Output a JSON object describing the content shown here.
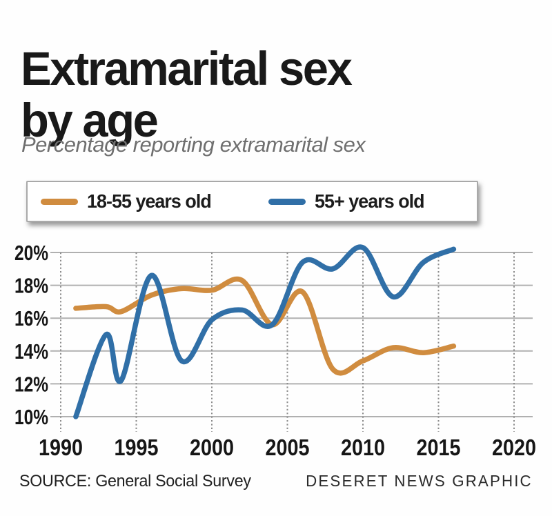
{
  "header": {
    "title_line1": "Extramarital sex",
    "title_line2": "by age",
    "subtitle": "Percentage reporting extramarital sex"
  },
  "footer": {
    "source": "SOURCE: General Social Survey",
    "credit": "DESERET NEWS GRAPHIC"
  },
  "colors": {
    "orange_series": "#d08c3f",
    "blue_series": "#306fa7",
    "grid_horizontal": "#b0b0b0",
    "grid_vertical_dotted": "#8c8c8c",
    "axis_text": "#161616",
    "title_text": "#191919",
    "subtitle_text": "#6f6f6f",
    "legend_border": "#a9a9a9"
  },
  "chart_data": {
    "type": "line",
    "title": "Extramarital sex by age",
    "subtitle": "Percentage reporting extramarital sex",
    "xlabel": "",
    "ylabel": "Percentage reporting extramarital sex",
    "xlim": [
      1990,
      2020
    ],
    "ylim": [
      10,
      20
    ],
    "x_ticks": [
      1990,
      1995,
      2000,
      2005,
      2010,
      2015,
      2020
    ],
    "y_ticks": [
      10,
      12,
      14,
      16,
      18,
      20
    ],
    "y_tick_suffix": "%",
    "grid": {
      "horizontal": "solid",
      "vertical": "dotted"
    },
    "legend_position": "top",
    "smooth": true,
    "x": [
      1991,
      1993,
      1994,
      1996,
      1998,
      2000,
      2002,
      2004,
      2006,
      2008,
      2010,
      2012,
      2014,
      2016
    ],
    "series": [
      {
        "name": "18-55 years old",
        "color": "#d08c3f",
        "values": [
          16.6,
          16.7,
          16.4,
          17.4,
          17.8,
          17.7,
          18.3,
          15.6,
          17.6,
          12.9,
          13.4,
          14.2,
          13.9,
          14.3
        ]
      },
      {
        "name": "55+ years old",
        "color": "#306fa7",
        "values": [
          10.0,
          15.0,
          12.2,
          18.6,
          13.4,
          15.9,
          16.5,
          15.6,
          19.4,
          19.0,
          20.3,
          17.3,
          19.4,
          20.2
        ]
      }
    ]
  }
}
